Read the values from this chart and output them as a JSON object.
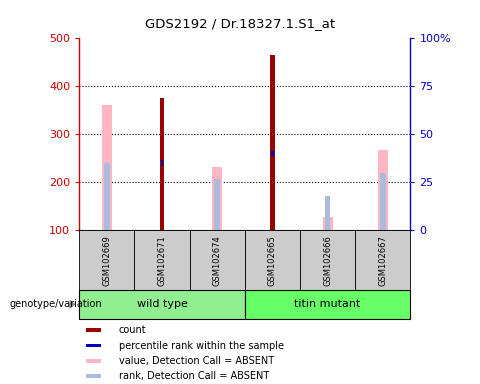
{
  "title": "GDS2192 / Dr.18327.1.S1_at",
  "samples": [
    "GSM102669",
    "GSM102671",
    "GSM102674",
    "GSM102665",
    "GSM102666",
    "GSM102667"
  ],
  "groups": [
    {
      "name": "wild type",
      "indices": [
        0,
        1,
        2
      ],
      "color": "#90EE90"
    },
    {
      "name": "titin mutant",
      "indices": [
        3,
        4,
        5
      ],
      "color": "#66FF66"
    }
  ],
  "count_values": [
    null,
    375,
    null,
    465,
    null,
    null
  ],
  "rank_values_pct": [
    null,
    35,
    null,
    40,
    null,
    null
  ],
  "absent_value_bars": [
    362,
    null,
    232,
    null,
    128,
    268
  ],
  "absent_rank_pct": [
    35,
    null,
    27,
    null,
    18,
    30
  ],
  "ylim": [
    100,
    500
  ],
  "yticks": [
    100,
    200,
    300,
    400,
    500
  ],
  "right_yticks": [
    0,
    25,
    50,
    75,
    100
  ],
  "count_color": "#990000",
  "rank_color": "#0000BB",
  "absent_value_color": "#FFB6C1",
  "absent_rank_color": "#AABBDD",
  "bg_color": "#CCCCCC",
  "left_axis_color": "#CC0000",
  "right_axis_color": "#0000CC",
  "legend_items": [
    {
      "label": "count",
      "color": "#990000"
    },
    {
      "label": "percentile rank within the sample",
      "color": "#0000BB"
    },
    {
      "label": "value, Detection Call = ABSENT",
      "color": "#FFB6C1"
    },
    {
      "label": "rank, Detection Call = ABSENT",
      "color": "#AABBDD"
    }
  ]
}
